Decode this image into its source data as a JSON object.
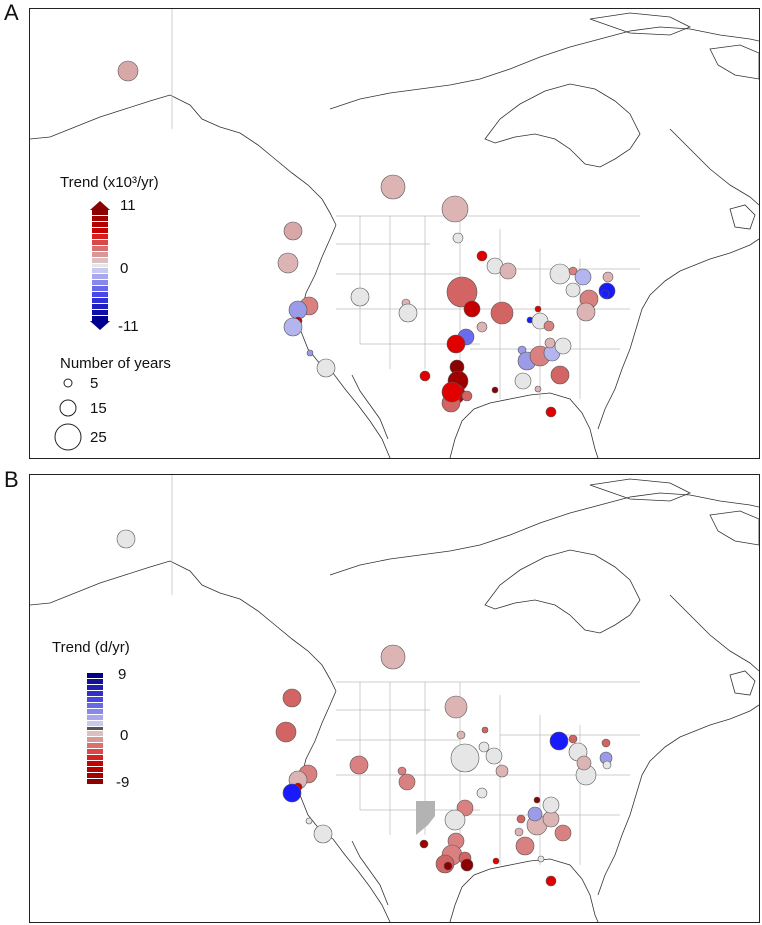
{
  "panels": {
    "A": {
      "letter": "A",
      "legend_title": "Trend (x10³/yr)",
      "scale_max": "11",
      "scale_mid": "0",
      "scale_min": "-11",
      "size_title": "Number of years",
      "size_labels": [
        "5",
        "15",
        "25"
      ]
    },
    "B": {
      "letter": "B",
      "legend_title": "Trend (d/yr)",
      "scale_max": "9",
      "scale_mid": "0",
      "scale_min": "-9"
    }
  },
  "colors": {
    "strong_red": "#8b0000",
    "red": "#e00000",
    "light_red": "#d98080",
    "pale_red": "#dcb4b4",
    "neutral": "#e6e6e6",
    "light_blue": "#9b9be8",
    "blue": "#1a1aff",
    "grey_region": "#b3b3b3"
  }
}
